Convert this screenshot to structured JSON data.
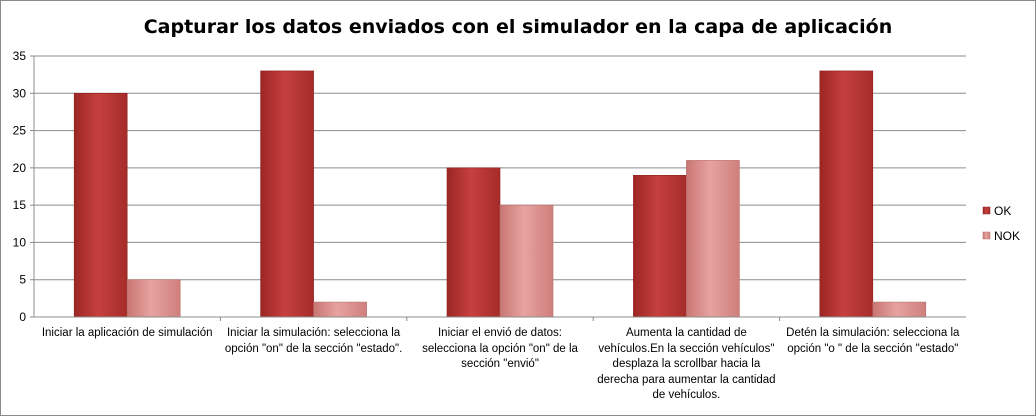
{
  "chart_data": {
    "type": "bar",
    "title": "Capturar los datos enviados con el simulador en la capa de aplicación",
    "xlabel": "",
    "ylabel": "",
    "ylim": [
      0,
      35
    ],
    "yticks": [
      "0",
      "5",
      "10",
      "15",
      "20",
      "25",
      "30",
      "35"
    ],
    "grid": true,
    "legend": "right",
    "categories": [
      "Iniciar la aplicación de simulación",
      "Iniciar la simulación: selecciona la opción \"on\" de la sección \"estado\".",
      "Iniciar el envió de datos: selecciona la opción \"on\" de la sección \"envió\"",
      "Aumenta la cantidad de vehículos.En la sección vehículos\" desplaza la scrollbar hacia la derecha para aumentar la cantidad de vehículos.",
      "Detén la simulación: selecciona la opción \"o \" de la sección \"estado\""
    ],
    "series": [
      {
        "name": "OK",
        "values": [
          30,
          33,
          20,
          19,
          33
        ],
        "color": "#b83230"
      },
      {
        "name": "NOK",
        "values": [
          5,
          2,
          15,
          21,
          2
        ],
        "color": "#d88986"
      }
    ]
  }
}
